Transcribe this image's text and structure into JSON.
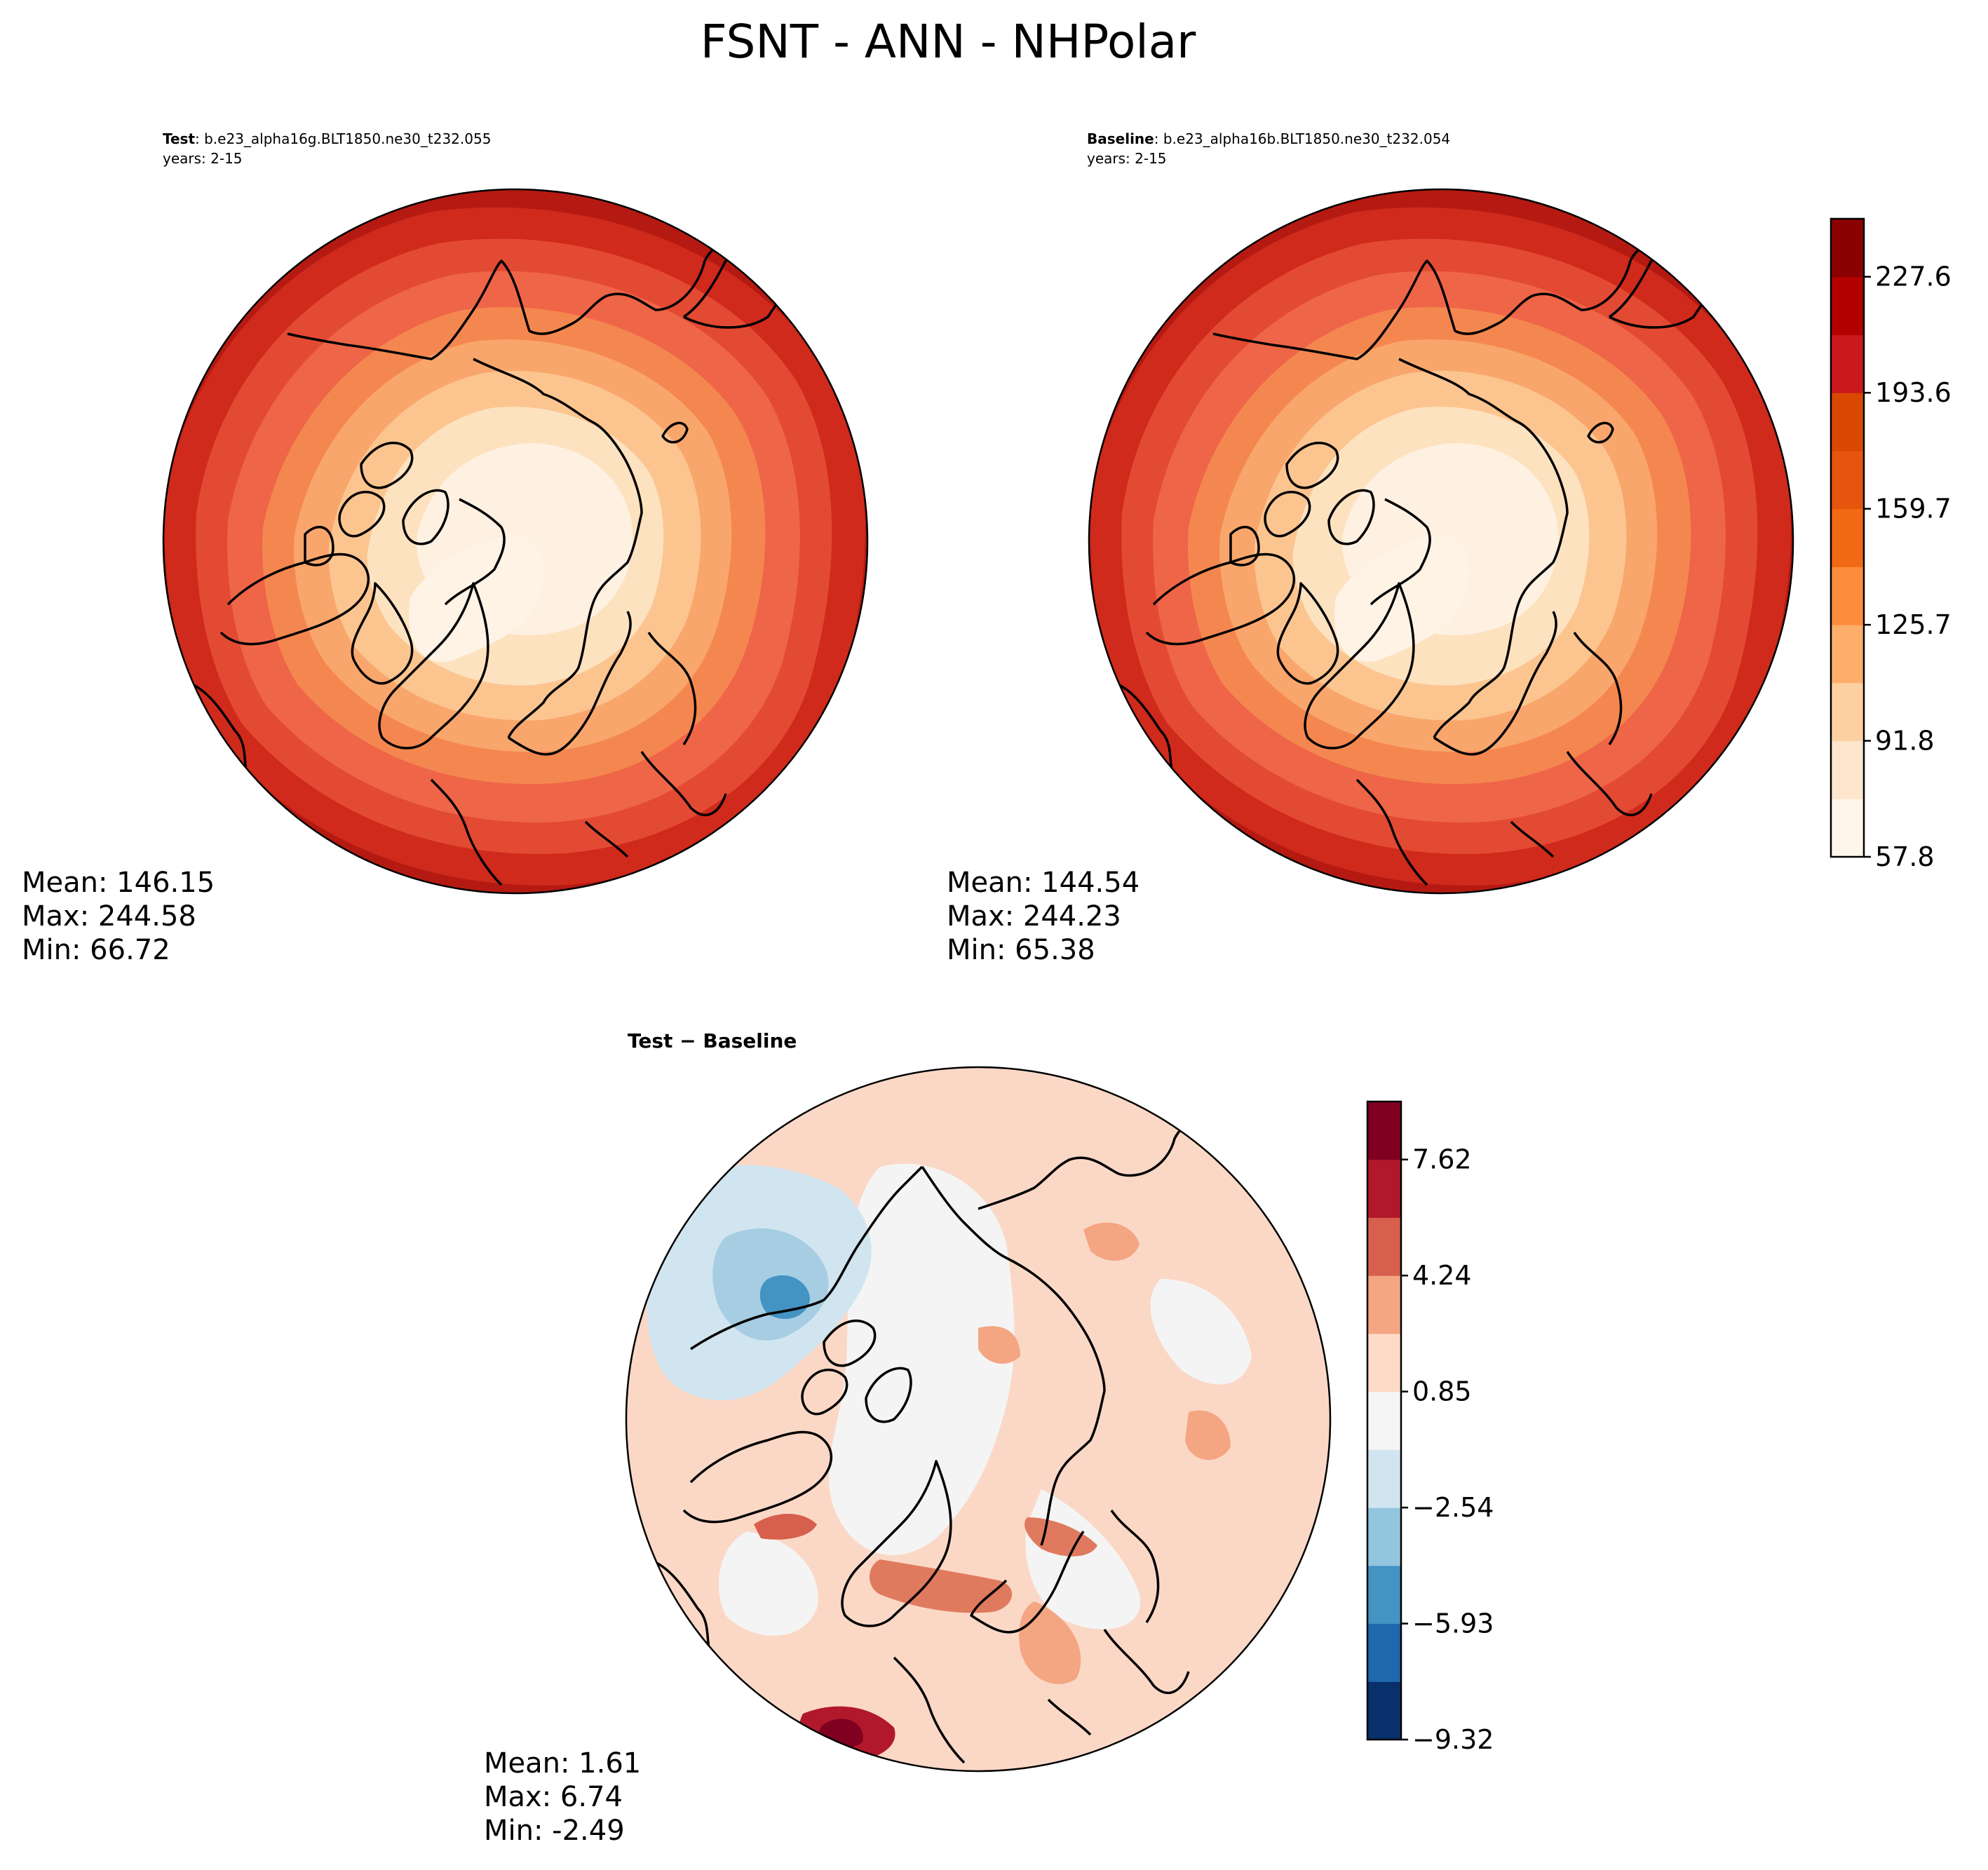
{
  "figure": {
    "title": "FSNT - ANN - NHPolar"
  },
  "panels": {
    "test": {
      "label": "Test",
      "case": ": b.e23_alpha16g.BLT1850.ne30_t232.055",
      "years": "years: 2-15",
      "stats": {
        "mean": "Mean: 146.15",
        "max": "Max: 244.58",
        "min": "Min: 66.72"
      }
    },
    "baseline": {
      "label": "Baseline",
      "case": ": b.e23_alpha16b.BLT1850.ne30_t232.054",
      "years": "years: 2-15",
      "stats": {
        "mean": "Mean: 144.54",
        "max": "Max: 244.23",
        "min": "Min: 65.38"
      }
    },
    "diff": {
      "label": "Test − Baseline",
      "stats": {
        "mean": "Mean:  1.61",
        "max": "Max:  6.74",
        "min": "Min: -2.49"
      }
    }
  },
  "colorbars": {
    "main": {
      "ticks": [
        "57.8",
        "91.8",
        "125.7",
        "159.7",
        "193.6",
        "227.6"
      ],
      "colors": [
        "#fff5eb",
        "#fee6ce",
        "#fdd0a2",
        "#fdae6b",
        "#fd8d3c",
        "#f16913",
        "#e6550d",
        "#d94801",
        "#cb181d",
        "#b30000",
        "#8b0000"
      ]
    },
    "diff": {
      "ticks": [
        "−9.32",
        "−5.93",
        "−2.54",
        "0.85",
        "4.24",
        "7.62"
      ],
      "colors": [
        "#08306b",
        "#1f68ac",
        "#4393c3",
        "#92c5de",
        "#d1e5f0",
        "#f5f5f5",
        "#fddbc7",
        "#f4a582",
        "#d6604d",
        "#b2182b",
        "#7f0020"
      ]
    }
  }
}
